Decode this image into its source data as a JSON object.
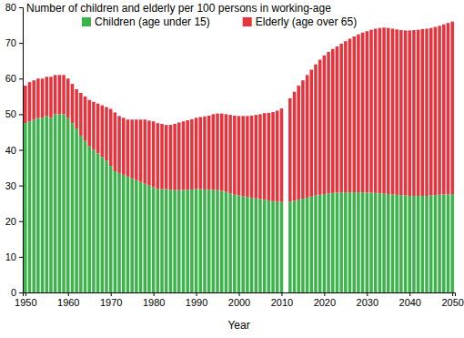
{
  "chart_data": {
    "type": "bar",
    "title": "Number of children and elderly per 100 persons in working-age",
    "x_label": "Year",
    "stacked": true,
    "grid": false,
    "legend": "top",
    "x": [
      1950,
      1951,
      1952,
      1953,
      1954,
      1955,
      1956,
      1957,
      1958,
      1959,
      1960,
      1961,
      1962,
      1963,
      1964,
      1965,
      1966,
      1967,
      1968,
      1969,
      1970,
      1971,
      1972,
      1973,
      1974,
      1975,
      1976,
      1977,
      1978,
      1979,
      1980,
      1981,
      1982,
      1983,
      1984,
      1985,
      1986,
      1987,
      1988,
      1989,
      1990,
      1991,
      1992,
      1993,
      1994,
      1995,
      1996,
      1997,
      1998,
      1999,
      2000,
      2001,
      2002,
      2003,
      2004,
      2005,
      2006,
      2007,
      2008,
      2009,
      2010,
      2011,
      2012,
      2013,
      2014,
      2015,
      2016,
      2017,
      2018,
      2019,
      2020,
      2021,
      2022,
      2023,
      2024,
      2025,
      2026,
      2027,
      2028,
      2029,
      2030,
      2031,
      2032,
      2033,
      2034,
      2035,
      2036,
      2037,
      2038,
      2039,
      2040,
      2041,
      2042,
      2043,
      2044,
      2045,
      2046,
      2047,
      2048,
      2049,
      2050
    ],
    "xlim": [
      1949.4,
      2050.6
    ],
    "xticks": [
      1950,
      1960,
      1970,
      1980,
      1990,
      2000,
      2010,
      2020,
      2030,
      2040,
      2050
    ],
    "ylim": [
      0,
      80
    ],
    "yticks": [
      0,
      10,
      20,
      30,
      40,
      50,
      60,
      70,
      80
    ],
    "series": [
      {
        "name": "Children (age under 15)",
        "color": "#3cb44b",
        "values": [
          47.5,
          48,
          48.5,
          49,
          49,
          49.5,
          49,
          50,
          50,
          50,
          49,
          47.5,
          46,
          44,
          42.5,
          41,
          40,
          39,
          38,
          37,
          35.5,
          34,
          33.5,
          33,
          32.5,
          32,
          31.5,
          31,
          30.5,
          30,
          29.5,
          29,
          29,
          29,
          28.8,
          28.7,
          28.7,
          28.8,
          28.8,
          28.9,
          29,
          29,
          28.9,
          28.8,
          28.8,
          28.7,
          28.5,
          28.2,
          27.8,
          27.4,
          27.2,
          27,
          26.8,
          26.6,
          26.4,
          26.2,
          26,
          25.8,
          25.6,
          25.5,
          25.4,
          null,
          25.5,
          25.7,
          26,
          26.3,
          26.6,
          26.9,
          27.2,
          27.4,
          27.6,
          27.8,
          27.9,
          28,
          28.1,
          28.1,
          28.1,
          28.1,
          28.1,
          28.1,
          28,
          28,
          27.9,
          27.8,
          27.7,
          27.6,
          27.5,
          27.4,
          27.3,
          27.2,
          27.1,
          27.1,
          27.1,
          27.1,
          27.1,
          27.2,
          27.3,
          27.4,
          27.5,
          27.5,
          27.6
        ]
      },
      {
        "name": "Elderly (age over 65)",
        "color": "#e8323c",
        "values": [
          10.5,
          11,
          11,
          11,
          11,
          11,
          11.5,
          11,
          11,
          11,
          11,
          11,
          11,
          12,
          12.5,
          13,
          13.5,
          14,
          14.5,
          15,
          16,
          16.5,
          16,
          16,
          16,
          16.5,
          17,
          17.5,
          18,
          18.2,
          18.5,
          18.5,
          18.3,
          18,
          18.2,
          18.6,
          19,
          19.2,
          19.5,
          19.7,
          20,
          20.2,
          20.5,
          20.8,
          21.2,
          21.5,
          21.7,
          21.8,
          22,
          22.2,
          22.3,
          22.5,
          22.7,
          23,
          23.4,
          23.8,
          24.3,
          24.6,
          25,
          25.5,
          26.2,
          null,
          29,
          30.6,
          32,
          33.2,
          34.4,
          35.6,
          36.8,
          37.9,
          38.9,
          39.7,
          40.4,
          41,
          41.7,
          42.4,
          43.1,
          43.7,
          44.3,
          44.8,
          45.3,
          45.7,
          46.1,
          46.4,
          46.6,
          46.6,
          46.5,
          46.4,
          46.3,
          46.3,
          46.4,
          46.5,
          46.6,
          46.8,
          46.9,
          47,
          47.2,
          47.4,
          47.7,
          48.1,
          48.4
        ]
      }
    ]
  }
}
